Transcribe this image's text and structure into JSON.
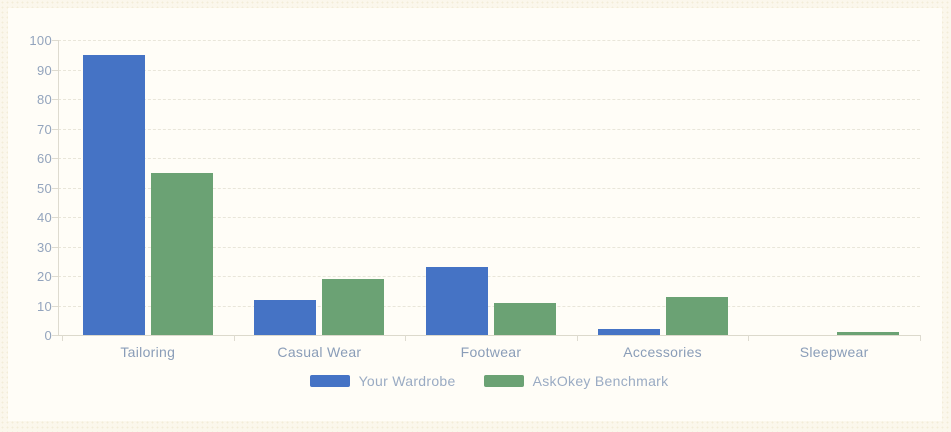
{
  "chart_data": {
    "type": "bar",
    "title": "",
    "xlabel": "",
    "ylabel": "",
    "categories": [
      "Tailoring",
      "Casual Wear",
      "Footwear",
      "Accessories",
      "Sleepwear"
    ],
    "series": [
      {
        "name": "Your Wardrobe",
        "color": "#4573c5",
        "values": [
          95,
          12,
          23,
          2,
          0
        ]
      },
      {
        "name": "AskOkey Benchmark",
        "color": "#6ba274",
        "values": [
          55,
          19,
          11,
          13,
          1
        ]
      }
    ],
    "ylim": [
      0,
      100
    ],
    "ytick_step": 10,
    "ytick_labels": [
      "0",
      "10",
      "20",
      "30",
      "40",
      "50",
      "60",
      "70",
      "80",
      "90",
      "100"
    ],
    "grid": true,
    "legend_position": "bottom"
  },
  "colors": {
    "page_background": "#fbf7ec",
    "canvas_background": "#fffdf7",
    "gridline": "#e9e6da",
    "axis_line": "#dcd9cc",
    "ytick_label": "#93a4bd",
    "category_label": "#8a9db8",
    "legend_text": "#9aabc3",
    "series_blue": "#4573c5",
    "series_green": "#6ba274"
  }
}
